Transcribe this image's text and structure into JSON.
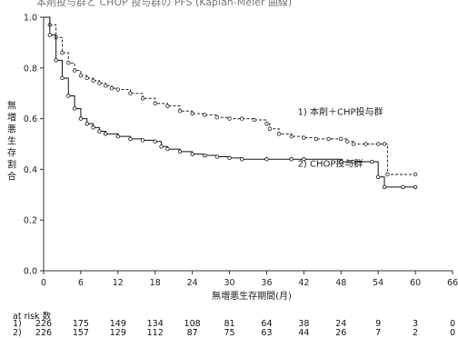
{
  "header_text": "本剤投与群と CHOP 投与群の PFS (Kaplan-Meier 曲線)",
  "chart_data": {
    "type": "line",
    "xlabel": "無増悪生存期間(月)",
    "ylabel": "無増悪生存割合",
    "xlim": [
      0,
      66
    ],
    "ylim": [
      0.0,
      1.0
    ],
    "x_ticks": [
      0,
      6,
      12,
      18,
      24,
      30,
      36,
      42,
      48,
      54,
      60,
      66
    ],
    "y_ticks": [
      0.0,
      0.2,
      0.4,
      0.6,
      0.8,
      1.0
    ],
    "y_tick_labels": [
      "0.0",
      "0.2",
      "0.4",
      "0.6",
      "0.8",
      "1.0"
    ],
    "grid": false,
    "series": [
      {
        "name": "1) 本剤＋CHP投与群",
        "style": "dashed",
        "color": "#222222",
        "points": [
          [
            0,
            1.0
          ],
          [
            1,
            0.97
          ],
          [
            2,
            0.92
          ],
          [
            3,
            0.86
          ],
          [
            4,
            0.82
          ],
          [
            5,
            0.79
          ],
          [
            6,
            0.77
          ],
          [
            7,
            0.76
          ],
          [
            8,
            0.75
          ],
          [
            9,
            0.74
          ],
          [
            10,
            0.73
          ],
          [
            11,
            0.72
          ],
          [
            12,
            0.715
          ],
          [
            14,
            0.7
          ],
          [
            16,
            0.68
          ],
          [
            18,
            0.66
          ],
          [
            20,
            0.65
          ],
          [
            22,
            0.63
          ],
          [
            24,
            0.62
          ],
          [
            26,
            0.615
          ],
          [
            28,
            0.605
          ],
          [
            30,
            0.6
          ],
          [
            32,
            0.6
          ],
          [
            34,
            0.595
          ],
          [
            36,
            0.58
          ],
          [
            36.5,
            0.56
          ],
          [
            38,
            0.54
          ],
          [
            40,
            0.53
          ],
          [
            42,
            0.525
          ],
          [
            44,
            0.52
          ],
          [
            46,
            0.52
          ],
          [
            48,
            0.52
          ],
          [
            49,
            0.51
          ],
          [
            50,
            0.5
          ],
          [
            52,
            0.5
          ],
          [
            54,
            0.5
          ],
          [
            55,
            0.5
          ],
          [
            55.5,
            0.38
          ],
          [
            60,
            0.38
          ]
        ]
      },
      {
        "name": "2) CHOP投与群",
        "style": "solid",
        "color": "#111111",
        "points": [
          [
            0,
            1.0
          ],
          [
            1,
            0.93
          ],
          [
            2,
            0.83
          ],
          [
            3,
            0.76
          ],
          [
            4,
            0.69
          ],
          [
            5,
            0.64
          ],
          [
            6,
            0.6
          ],
          [
            7,
            0.58
          ],
          [
            8,
            0.565
          ],
          [
            9,
            0.55
          ],
          [
            10,
            0.54
          ],
          [
            12,
            0.53
          ],
          [
            14,
            0.52
          ],
          [
            16,
            0.515
          ],
          [
            18,
            0.51
          ],
          [
            19,
            0.49
          ],
          [
            20,
            0.48
          ],
          [
            22,
            0.47
          ],
          [
            24,
            0.46
          ],
          [
            26,
            0.455
          ],
          [
            28,
            0.45
          ],
          [
            30,
            0.445
          ],
          [
            32,
            0.44
          ],
          [
            36,
            0.44
          ],
          [
            40,
            0.44
          ],
          [
            42,
            0.44
          ],
          [
            48,
            0.43
          ],
          [
            50,
            0.43
          ],
          [
            53,
            0.43
          ],
          [
            54,
            0.37
          ],
          [
            55,
            0.33
          ],
          [
            58,
            0.33
          ],
          [
            60,
            0.33
          ]
        ]
      }
    ],
    "annotations": [
      {
        "text": "1) 本剤＋CHP投与群",
        "x": 41,
        "y": 0.615
      },
      {
        "text": "2) CHOP投与群",
        "x": 41,
        "y": 0.41
      }
    ]
  },
  "at_risk": {
    "title": "at risk 数",
    "months": [
      0,
      6,
      12,
      18,
      24,
      30,
      36,
      42,
      48,
      54,
      60,
      66
    ],
    "rows": [
      {
        "label": "1)",
        "values": [
          "226",
          "175",
          "149",
          "134",
          "108",
          "81",
          "64",
          "38",
          "24",
          "9",
          "3",
          "0"
        ]
      },
      {
        "label": "2)",
        "values": [
          "226",
          "157",
          "129",
          "112",
          "87",
          "75",
          "63",
          "44",
          "26",
          "7",
          "2",
          "0"
        ]
      }
    ]
  }
}
